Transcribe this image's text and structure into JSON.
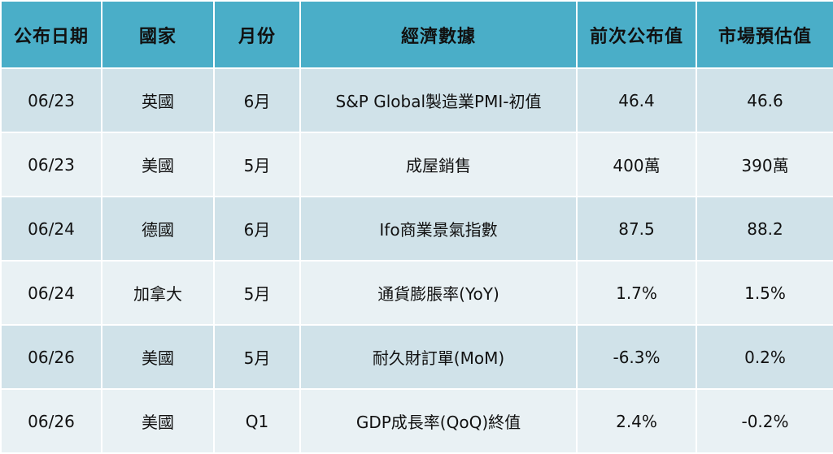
{
  "table": {
    "headers": [
      "公布日期",
      "國家",
      "月份",
      "經濟數據",
      "前次公布值",
      "市場預估值"
    ],
    "rows": [
      [
        "06/23",
        "英國",
        "6月",
        "S&P Global製造業PMI-初值",
        "46.4",
        "46.6"
      ],
      [
        "06/23",
        "美國",
        "5月",
        "成屋銷售",
        "400萬",
        "390萬"
      ],
      [
        "06/24",
        "德國",
        "6月",
        "Ifo商業景氣指數",
        "87.5",
        "88.2"
      ],
      [
        "06/24",
        "加拿大",
        "5月",
        "通貨膨脹率(YoY)",
        "1.7%",
        "1.5%"
      ],
      [
        "06/26",
        "美國",
        "5月",
        "耐久財訂單(MoM)",
        "-6.3%",
        "0.2%"
      ],
      [
        "06/26",
        "美國",
        "Q1",
        "GDP成長率(QoQ)終值",
        "2.4%",
        "-0.2%"
      ]
    ]
  },
  "colors": {
    "header_bg": "#4aaec8",
    "row_odd_bg": "#d0e2e9",
    "row_even_bg": "#e9f1f4"
  }
}
